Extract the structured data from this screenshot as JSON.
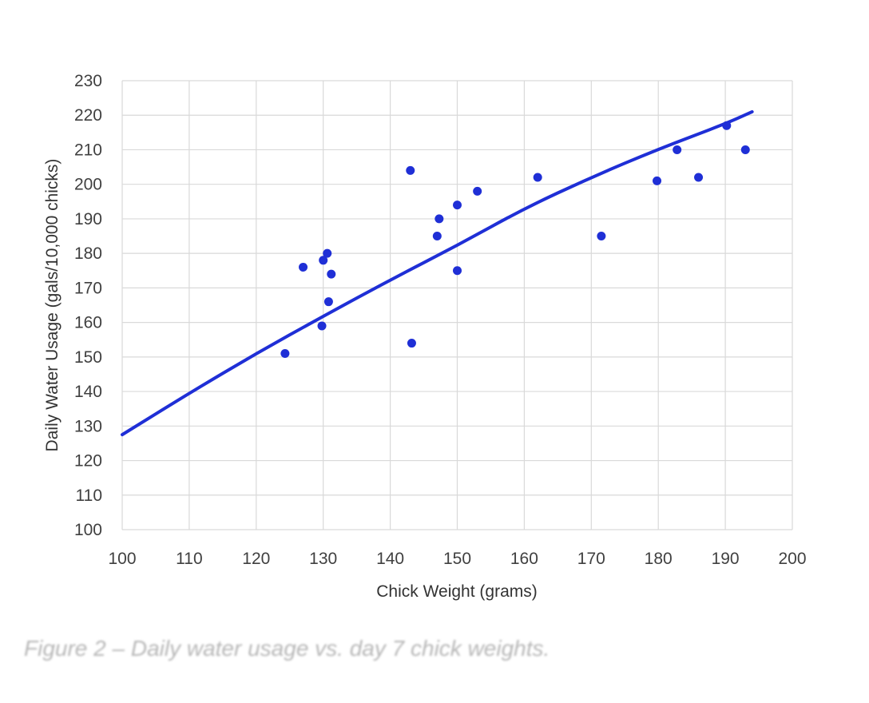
{
  "chart_data": {
    "type": "scatter",
    "xlabel": "Chick Weight (grams)",
    "ylabel": "Daily Water Usage (gals/10,000 chicks)",
    "xlim": [
      100,
      200
    ],
    "ylim": [
      100,
      230
    ],
    "x_ticks": [
      100,
      110,
      120,
      130,
      140,
      150,
      160,
      170,
      180,
      190,
      200
    ],
    "y_ticks": [
      100,
      110,
      120,
      130,
      140,
      150,
      160,
      170,
      180,
      190,
      200,
      210,
      220,
      230
    ],
    "grid": true,
    "legend": "none",
    "marker_color": "#1f2fd6",
    "line_color": "#1f2fd6",
    "points": [
      {
        "x": 124.3,
        "y": 151
      },
      {
        "x": 127.0,
        "y": 176
      },
      {
        "x": 129.8,
        "y": 159
      },
      {
        "x": 130.0,
        "y": 178
      },
      {
        "x": 130.6,
        "y": 180
      },
      {
        "x": 130.8,
        "y": 166
      },
      {
        "x": 131.2,
        "y": 174
      },
      {
        "x": 143.0,
        "y": 204
      },
      {
        "x": 143.2,
        "y": 154
      },
      {
        "x": 147.0,
        "y": 185
      },
      {
        "x": 147.3,
        "y": 190
      },
      {
        "x": 150.0,
        "y": 194
      },
      {
        "x": 150.0,
        "y": 175
      },
      {
        "x": 153.0,
        "y": 198
      },
      {
        "x": 162.0,
        "y": 202
      },
      {
        "x": 171.5,
        "y": 185
      },
      {
        "x": 179.8,
        "y": 201
      },
      {
        "x": 182.8,
        "y": 210
      },
      {
        "x": 186.0,
        "y": 202
      },
      {
        "x": 190.2,
        "y": 217
      },
      {
        "x": 193.0,
        "y": 210
      }
    ],
    "trendline": [
      {
        "x": 100,
        "y": 127.5
      },
      {
        "x": 110,
        "y": 139.5
      },
      {
        "x": 120,
        "y": 151.0
      },
      {
        "x": 130,
        "y": 161.8
      },
      {
        "x": 140,
        "y": 172.3
      },
      {
        "x": 150,
        "y": 182.3
      },
      {
        "x": 160,
        "y": 193.0
      },
      {
        "x": 170,
        "y": 202.0
      },
      {
        "x": 180,
        "y": 210.2
      },
      {
        "x": 190,
        "y": 217.5
      },
      {
        "x": 194,
        "y": 221.0
      }
    ]
  },
  "caption": "Figure 2 – Daily water usage vs. day 7 chick weights."
}
